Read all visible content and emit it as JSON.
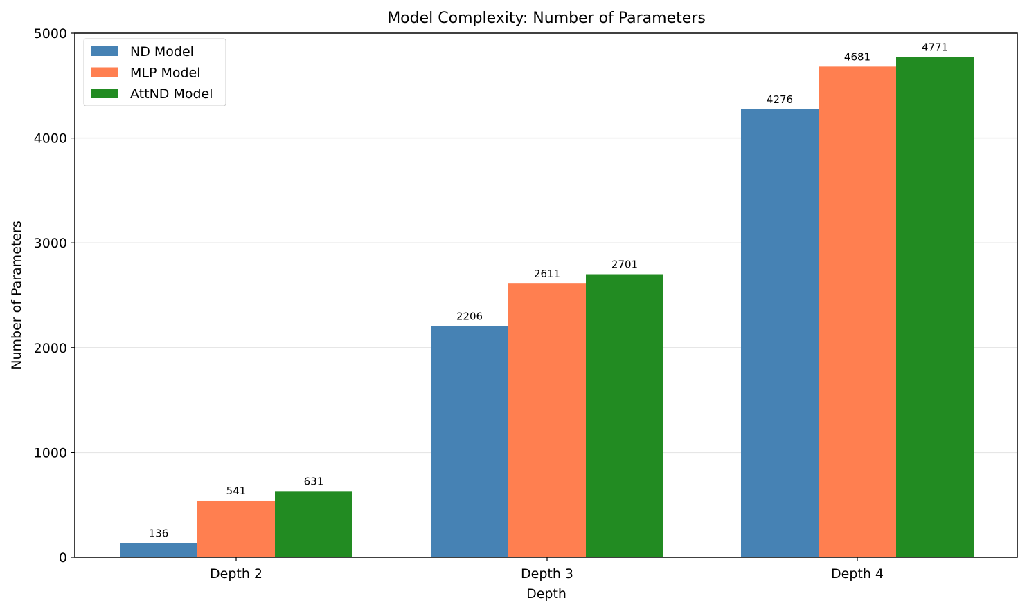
{
  "chart_data": {
    "type": "bar",
    "title": "Model Complexity: Number of Parameters",
    "xlabel": "Depth",
    "ylabel": "Number of Parameters",
    "categories": [
      "Depth 2",
      "Depth 3",
      "Depth 4"
    ],
    "series": [
      {
        "name": "ND Model",
        "color": "#4682b4",
        "values": [
          136,
          2206,
          4276
        ]
      },
      {
        "name": "MLP Model",
        "color": "#ff7f50",
        "values": [
          541,
          2611,
          4681
        ]
      },
      {
        "name": "AttND Model",
        "color": "#228b22",
        "values": [
          631,
          2701,
          4771
        ]
      }
    ],
    "ylim": [
      0,
      5000
    ],
    "yticks": [
      0,
      1000,
      2000,
      3000,
      4000,
      5000
    ],
    "grid": "horizontal",
    "legend_position": "top-left",
    "show_value_labels": true
  }
}
